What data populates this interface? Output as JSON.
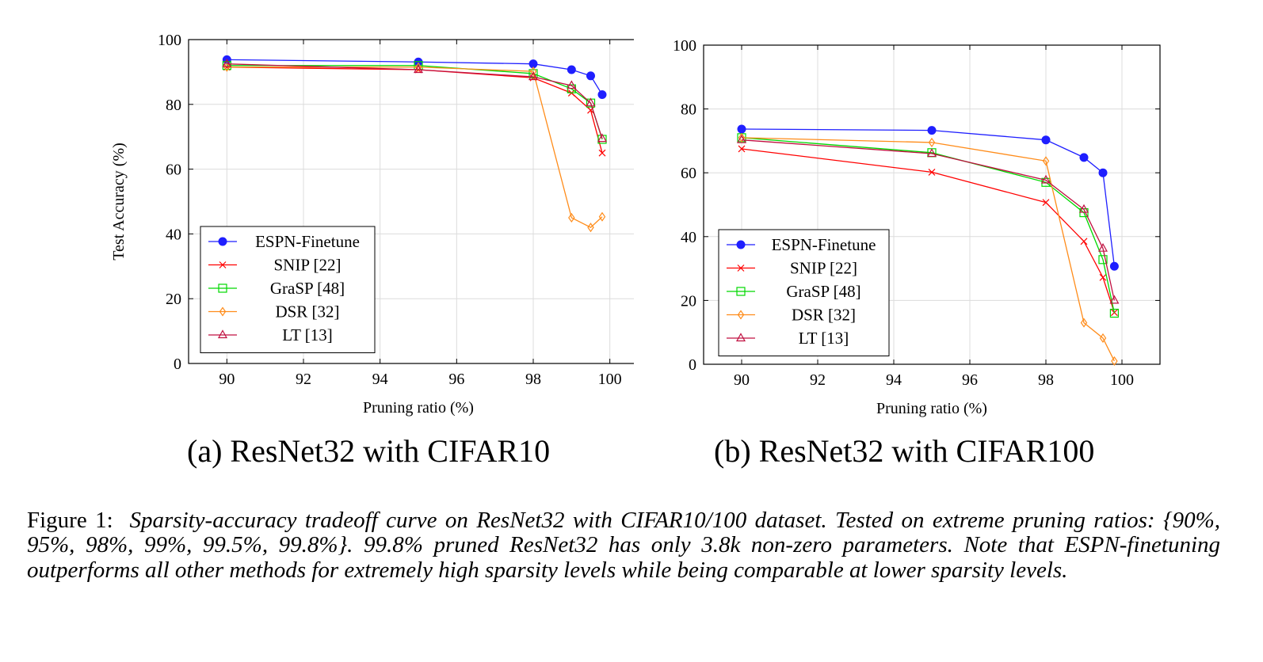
{
  "colors": {
    "espn": "#1f1fff",
    "snip": "#ff0000",
    "grasp": "#00d800",
    "dsr": "#ff8c1a",
    "lt": "#c01040"
  },
  "chart_data": [
    {
      "type": "line",
      "subcaption": "(a) ResNet32 with CIFAR10",
      "xlabel": "Pruning ratio (%)",
      "ylabel": "Test Accuracy (%)",
      "xlim": [
        89,
        101
      ],
      "ylim": [
        0,
        100
      ],
      "xticks": [
        90,
        92,
        94,
        96,
        98,
        100
      ],
      "yticks": [
        0,
        20,
        40,
        60,
        80,
        100
      ],
      "grid": true,
      "legend_position": "bottom-left",
      "x": [
        90,
        95,
        98,
        99,
        99.5,
        99.8
      ],
      "series": [
        {
          "name": "ESPN-Finetune",
          "marker": "circle",
          "color_key": "espn",
          "values": [
            93.8,
            93.1,
            92.5,
            90.7,
            88.8,
            83.0
          ]
        },
        {
          "name": "SNIP [22]",
          "marker": "x",
          "color_key": "snip",
          "values": [
            91.5,
            90.7,
            88.2,
            83.5,
            78.2,
            65.0
          ]
        },
        {
          "name": "GraSP [48]",
          "marker": "square",
          "color_key": "grasp",
          "values": [
            92.0,
            92.0,
            89.5,
            84.8,
            80.4,
            69.2
          ]
        },
        {
          "name": "DSR [32]",
          "marker": "diamond",
          "color_key": "dsr",
          "values": [
            91.5,
            91.5,
            90.2,
            45.0,
            42.0,
            45.3
          ]
        },
        {
          "name": "LT [13]",
          "marker": "triangle",
          "color_key": "lt",
          "values": [
            92.5,
            90.7,
            88.5,
            85.8,
            80.4,
            69.4
          ]
        }
      ]
    },
    {
      "type": "line",
      "subcaption": "(b) ResNet32 with CIFAR100",
      "xlabel": "Pruning ratio (%)",
      "ylabel": "",
      "xlim": [
        89,
        101
      ],
      "ylim": [
        0,
        100
      ],
      "xticks": [
        90,
        92,
        94,
        96,
        98,
        100
      ],
      "yticks": [
        0,
        20,
        40,
        60,
        80,
        100
      ],
      "grid": true,
      "legend_position": "bottom-left",
      "x": [
        90,
        95,
        98,
        99,
        99.5,
        99.8
      ],
      "series": [
        {
          "name": "ESPN-Finetune",
          "marker": "circle",
          "color_key": "espn",
          "values": [
            73.7,
            73.3,
            70.3,
            64.8,
            60.0,
            30.7
          ]
        },
        {
          "name": "SNIP [22]",
          "marker": "x",
          "color_key": "snip",
          "values": [
            67.5,
            60.2,
            50.7,
            38.5,
            27.2,
            16.2
          ]
        },
        {
          "name": "GraSP [48]",
          "marker": "square",
          "color_key": "grasp",
          "values": [
            71.0,
            66.3,
            57.0,
            47.5,
            32.8,
            16.0
          ]
        },
        {
          "name": "DSR [32]",
          "marker": "diamond",
          "color_key": "dsr",
          "values": [
            71.0,
            69.5,
            63.7,
            13.0,
            8.2,
            1.0
          ]
        },
        {
          "name": "LT [13]",
          "marker": "triangle",
          "color_key": "lt",
          "values": [
            70.3,
            66.0,
            57.7,
            48.5,
            36.3,
            20.0
          ]
        }
      ]
    }
  ],
  "caption": {
    "label": "Figure 1:",
    "text": "Sparsity-accuracy tradeoff curve on ResNet32 with CIFAR10/100 dataset. Tested on extreme pruning ratios: {90%, 95%, 98%, 99%, 99.5%, 99.8%}. 99.8% pruned ResNet32 has only 3.8k non-zero parameters. Note that ESPN-finetuning outperforms all other methods for extremely high sparsity levels while being comparable at lower sparsity levels."
  }
}
